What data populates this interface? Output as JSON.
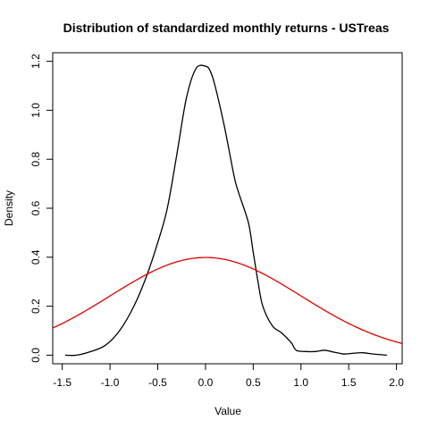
{
  "chart_data": {
    "type": "line",
    "title": "Distribution of standardized monthly returns - USTreas",
    "xlabel": "Value",
    "ylabel": "Density",
    "xlim": [
      -1.6,
      2.06
    ],
    "ylim": [
      -0.035,
      1.235
    ],
    "x_ticks": [
      -1.5,
      -1.0,
      -0.5,
      0.0,
      0.5,
      1.0,
      1.5,
      2.0
    ],
    "x_tick_labels": [
      "-1.5",
      "-1.0",
      "-0.5",
      "0.0",
      "0.5",
      "1.0",
      "1.5",
      "2.0"
    ],
    "y_ticks": [
      0.0,
      0.2,
      0.4,
      0.6,
      0.8,
      1.0,
      1.2
    ],
    "y_tick_labels": [
      "0.0",
      "0.2",
      "0.4",
      "0.6",
      "0.8",
      "1.0",
      "1.2"
    ],
    "grid": false,
    "legend": "none",
    "series": [
      {
        "color": "#000000",
        "x": [
          -1.47,
          -1.35,
          -1.2,
          -1.05,
          -0.9,
          -0.75,
          -0.62,
          -0.5,
          -0.4,
          -0.3,
          -0.2,
          -0.1,
          0.0,
          0.05,
          0.1,
          0.2,
          0.3,
          0.35,
          0.45,
          0.5,
          0.55,
          0.6,
          0.7,
          0.8,
          0.9,
          0.95,
          1.05,
          1.15,
          1.25,
          1.35,
          1.45,
          1.55,
          1.65,
          1.75,
          1.9
        ],
        "values": [
          0.0,
          0.0,
          0.015,
          0.04,
          0.1,
          0.2,
          0.32,
          0.46,
          0.6,
          0.82,
          1.05,
          1.17,
          1.18,
          1.16,
          1.1,
          0.93,
          0.73,
          0.66,
          0.54,
          0.42,
          0.3,
          0.2,
          0.12,
          0.09,
          0.05,
          0.02,
          0.015,
          0.015,
          0.02,
          0.012,
          0.005,
          0.008,
          0.01,
          0.005,
          0.0
        ]
      },
      {
        "color": "#e00000",
        "type": "normal_pdf",
        "mean": 0,
        "sd": 1,
        "x_range": [
          -1.6,
          2.06
        ]
      }
    ]
  }
}
